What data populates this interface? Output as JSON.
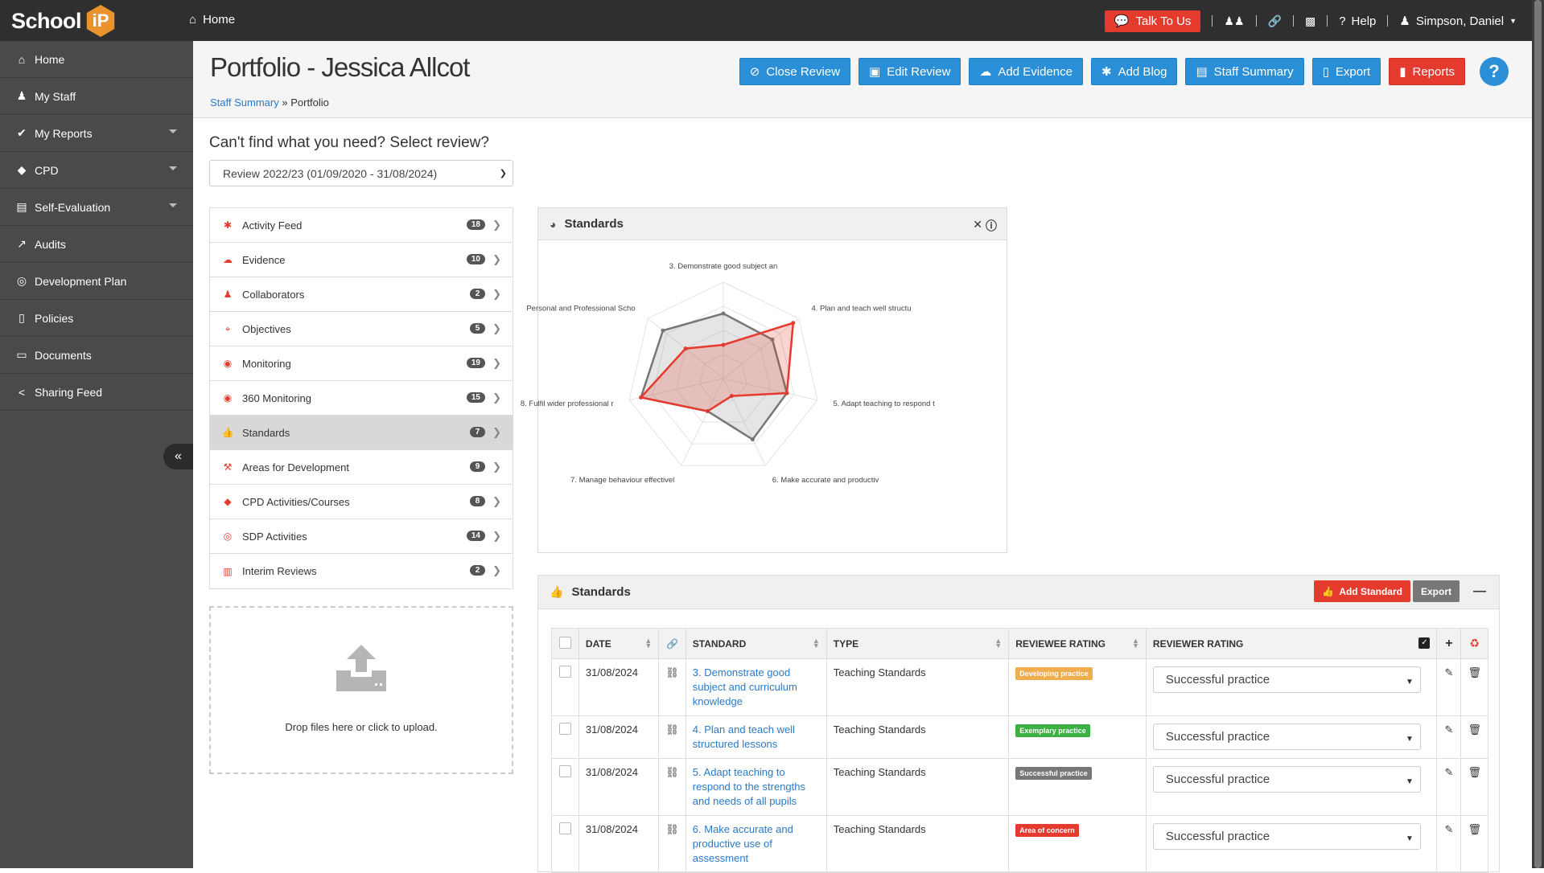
{
  "topbar": {
    "logo_text": "School",
    "logo_mark": "iP",
    "home_label": "Home",
    "talk_label": "Talk To Us",
    "help_label": "Help",
    "user_label": "Simpson, Daniel"
  },
  "sidebar": {
    "items": [
      {
        "label": "Home",
        "icon": "home-icon"
      },
      {
        "label": "My Staff",
        "icon": "users-icon"
      },
      {
        "label": "My Reports",
        "icon": "check-icon"
      },
      {
        "label": "CPD",
        "icon": "tag-icon"
      },
      {
        "label": "Self-Evaluation",
        "icon": "book-icon"
      },
      {
        "label": "Audits",
        "icon": "chart-line-icon"
      },
      {
        "label": "Development Plan",
        "icon": "target-icon"
      },
      {
        "label": "Policies",
        "icon": "file-icon"
      },
      {
        "label": "Documents",
        "icon": "folder-icon"
      },
      {
        "label": "Sharing Feed",
        "icon": "share-icon"
      }
    ]
  },
  "header": {
    "title": "Portfolio - Jessica Allcot",
    "breadcrumb_link": "Staff Summary",
    "breadcrumb_sep": "»",
    "breadcrumb_current": "Portfolio",
    "buttons": {
      "close_review": "Close Review",
      "edit_review": "Edit Review",
      "add_evidence": "Add Evidence",
      "add_blog": "Add Blog",
      "staff_summary": "Staff Summary",
      "export": "Export",
      "reports": "Reports"
    }
  },
  "review": {
    "question": "Can't find what you need? Select review?",
    "selected": "Review 2022/23 (01/09/2020 - 31/08/2024)"
  },
  "menu": {
    "items": [
      {
        "label": "Activity Feed",
        "count": "18",
        "icon": "asterisk-icon"
      },
      {
        "label": "Evidence",
        "count": "10",
        "icon": "cloud-upload-icon"
      },
      {
        "label": "Collaborators",
        "count": "2",
        "icon": "user-icon"
      },
      {
        "label": "Objectives",
        "count": "5",
        "icon": "crosshair-icon"
      },
      {
        "label": "Monitoring",
        "count": "19",
        "icon": "eye-icon"
      },
      {
        "label": "360 Monitoring",
        "count": "15",
        "icon": "eye-icon"
      },
      {
        "label": "Standards",
        "count": "7",
        "icon": "thumbs-up-icon"
      },
      {
        "label": "Areas for Development",
        "count": "9",
        "icon": "hammer-icon"
      },
      {
        "label": "CPD Activities/Courses",
        "count": "8",
        "icon": "tag-icon"
      },
      {
        "label": "SDP Activities",
        "count": "14",
        "icon": "target-icon"
      },
      {
        "label": "Interim Reviews",
        "count": "2",
        "icon": "bar-chart-icon"
      }
    ],
    "active_index": 6
  },
  "dropzone": {
    "text": "Drop files here or click to upload."
  },
  "chart_panel": {
    "title": "Standards"
  },
  "chart_data": {
    "type": "radar",
    "axes": [
      "3. Demonstrate good subject an",
      "4. Plan and teach well structu",
      "5. Adapt teaching to respond t",
      "6. Make accurate and productiv",
      "7. Manage behaviour effectivel",
      "8. Fulfil wider professional r",
      "Personal and Professional Scho"
    ],
    "rmax": 4,
    "series": [
      {
        "color": "#777777",
        "fill": "rgba(150,150,150,0.25)",
        "values": [
          2.7,
          2.6,
          2.7,
          2.8,
          1.5,
          3.5,
          3.2
        ]
      },
      {
        "color": "#e53b2f",
        "fill": "rgba(229,59,47,0.22)",
        "values": [
          1.4,
          3.7,
          2.7,
          0.8,
          1.5,
          3.5,
          2.0
        ]
      }
    ]
  },
  "standards_panel": {
    "title": "Standards",
    "add_label": "Add Standard",
    "export_label": "Export",
    "columns": {
      "date": "DATE",
      "standard": "STANDARD",
      "type": "TYPE",
      "reviewee": "REVIEWEE RATING",
      "reviewer": "REVIEWER RATING"
    },
    "rows": [
      {
        "date": "31/08/2024",
        "standard": "3. Demonstrate good subject and curriculum knowledge",
        "type": "Teaching Standards",
        "badge": "Developing practice",
        "badge_color": "#f0ad4e",
        "reviewer": "Successful practice"
      },
      {
        "date": "31/08/2024",
        "standard": "4. Plan and teach well structured lessons",
        "type": "Teaching Standards",
        "badge": "Exemplary practice",
        "badge_color": "#3cb043",
        "reviewer": "Successful practice"
      },
      {
        "date": "31/08/2024",
        "standard": "5. Adapt teaching to respond to the strengths and needs of all pupils",
        "type": "Teaching Standards",
        "badge": "Successful practice",
        "badge_color": "#777777",
        "reviewer": "Successful practice"
      },
      {
        "date": "31/08/2024",
        "standard": "6. Make accurate and productive use of assessment",
        "type": "Teaching Standards",
        "badge": "Area of concern",
        "badge_color": "#e53b2f",
        "reviewer": "Successful practice"
      }
    ]
  }
}
